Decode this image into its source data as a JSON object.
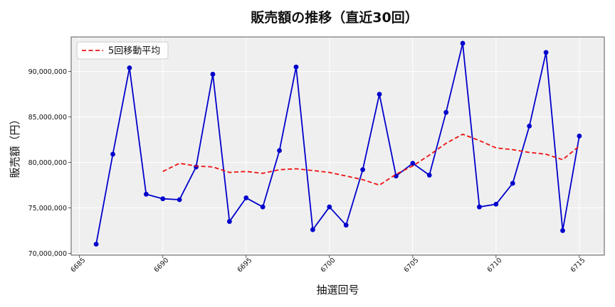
{
  "chart_data": {
    "type": "line",
    "title": "販売額の推移（直近30回）",
    "xlabel": "抽選回号",
    "ylabel": "販売額（円）",
    "xlim": [
      6684.5,
      6716.5
    ],
    "ylim": [
      69800000,
      93800000
    ],
    "xticks": [
      6685,
      6690,
      6695,
      6700,
      6705,
      6710,
      6715
    ],
    "yticks": [
      70000000,
      75000000,
      80000000,
      85000000,
      90000000
    ],
    "xtick_labels": [
      "6685",
      "6690",
      "6695",
      "6700",
      "6705",
      "6710",
      "6715"
    ],
    "ytick_labels": [
      "70,000,000",
      "75,000,000",
      "80,000,000",
      "85,000,000",
      "90,000,000"
    ],
    "grid": true,
    "legend_position": "top-left",
    "x": [
      6686,
      6687,
      6688,
      6689,
      6690,
      6691,
      6692,
      6693,
      6694,
      6695,
      6696,
      6697,
      6698,
      6699,
      6700,
      6701,
      6702,
      6703,
      6704,
      6705,
      6706,
      6707,
      6708,
      6709,
      6710,
      6711,
      6712,
      6713,
      6714,
      6715
    ],
    "series": [
      {
        "name": "",
        "color": "#0000cc",
        "style": "solid",
        "markers": true,
        "values": [
          71000000,
          80900000,
          90400000,
          76500000,
          76000000,
          75900000,
          79500000,
          89700000,
          73500000,
          76100000,
          75100000,
          81300000,
          90500000,
          72600000,
          75100000,
          73100000,
          79200000,
          87500000,
          78500000,
          79900000,
          78600000,
          85500000,
          93100000,
          75100000,
          75400000,
          77700000,
          84000000,
          92100000,
          72500000,
          82900000
        ]
      },
      {
        "name": "5回移動平均",
        "color": "#ee1111",
        "style": "dashed",
        "markers": false,
        "values": [
          null,
          null,
          null,
          null,
          79000000,
          79900000,
          79600000,
          79500000,
          78900000,
          79000000,
          78800000,
          79200000,
          79300000,
          79100000,
          78900000,
          78500000,
          78100000,
          77500000,
          78700000,
          79600000,
          80800000,
          82100000,
          83100000,
          82400000,
          81600000,
          81400000,
          81100000,
          80900000,
          80300000,
          81800000
        ]
      }
    ]
  }
}
